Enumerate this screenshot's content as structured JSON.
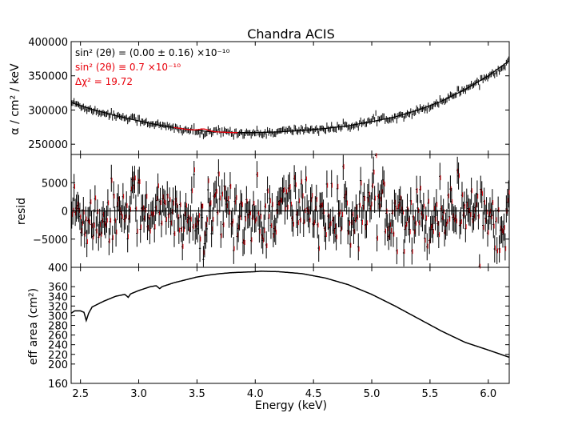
{
  "chart_data": [
    {
      "panel": "spectrum",
      "type": "scatter",
      "title": "Chandra ACIS",
      "ylabel": "α / cm² / keV",
      "xlim": [
        2.42,
        6.18
      ],
      "ylim": [
        235000,
        400000
      ],
      "yticks": [
        250000,
        300000,
        350000,
        400000
      ],
      "ytick_labels": [
        "250000",
        "300000",
        "350000",
        "400000"
      ],
      "annotations": [
        {
          "text": "sin² (2θ) = (0.00 ± 0.16) ×10⁻¹⁰",
          "color": "#000000"
        },
        {
          "text": "sin² (2θ) ≡ 0.7 ×10⁻¹⁰",
          "color": "#e8000b"
        },
        {
          "text": "Δχ²  = 19.72",
          "color": "#e8000b"
        }
      ],
      "series": [
        {
          "name": "data",
          "color": "#000000",
          "model_points": [
            [
              2.42,
              311000
            ],
            [
              2.6,
              301000
            ],
            [
              2.8,
              292000
            ],
            [
              3.0,
              284000
            ],
            [
              3.2,
              277000
            ],
            [
              3.4,
              272000
            ],
            [
              3.6,
              268500
            ],
            [
              3.8,
              267000
            ],
            [
              4.0,
              267000
            ],
            [
              4.2,
              268000
            ],
            [
              4.4,
              270000
            ],
            [
              4.6,
              273000
            ],
            [
              4.8,
              277000
            ],
            [
              5.0,
              283000
            ],
            [
              5.2,
              290000
            ],
            [
              5.4,
              300000
            ],
            [
              5.6,
              313000
            ],
            [
              5.8,
              330000
            ],
            [
              6.0,
              350000
            ],
            [
              6.18,
              372000
            ]
          ]
        },
        {
          "name": "sterile line model",
          "color": "#e8000b",
          "line_center": 3.56,
          "line_width": 0.04,
          "line_amplitude": 3000
        }
      ]
    },
    {
      "panel": "residuals",
      "type": "scatter",
      "ylabel": "resid",
      "xlim": [
        2.42,
        6.18
      ],
      "ylim": [
        -10000,
        10000
      ],
      "yticks": [
        -5000,
        0,
        5000
      ],
      "ytick_labels": [
        "−5000",
        "0",
        "5000"
      ],
      "bottom_tick_label": "400",
      "residual_rms": 3000,
      "dip": {
        "center": 3.56,
        "depth": -5500,
        "width": 0.05
      }
    },
    {
      "panel": "effective_area",
      "type": "line",
      "ylabel": "eff area (cm²)",
      "xlabel": "Energy (keV)",
      "xlim": [
        2.42,
        6.18
      ],
      "ylim": [
        160,
        400
      ],
      "xticks": [
        2.5,
        3.0,
        3.5,
        4.0,
        4.5,
        5.0,
        5.5,
        6.0
      ],
      "xtick_labels": [
        "2.5",
        "3.0",
        "3.5",
        "4.0",
        "4.5",
        "5.0",
        "5.5",
        "6.0"
      ],
      "yticks": [
        160,
        200,
        220,
        240,
        260,
        280,
        300,
        320,
        340,
        360
      ],
      "ytick_labels": [
        "160",
        "200",
        "220",
        "240",
        "260",
        "280",
        "300",
        "320",
        "340",
        "360"
      ],
      "x": [
        2.42,
        2.45,
        2.5,
        2.53,
        2.55,
        2.57,
        2.6,
        2.7,
        2.8,
        2.88,
        2.91,
        2.93,
        3.0,
        3.1,
        3.15,
        3.18,
        3.2,
        3.3,
        3.4,
        3.5,
        3.6,
        3.7,
        3.8,
        3.9,
        4.0,
        4.05,
        4.2,
        4.4,
        4.6,
        4.8,
        5.0,
        5.2,
        5.4,
        5.6,
        5.8,
        6.0,
        6.18
      ],
      "y": [
        305,
        310,
        310,
        307,
        290,
        305,
        318,
        330,
        340,
        344,
        338,
        345,
        352,
        360,
        362,
        356,
        360,
        368,
        374,
        380,
        384,
        387,
        389,
        390,
        391,
        392,
        391,
        387,
        378,
        364,
        344,
        320,
        294,
        268,
        245,
        229,
        214
      ]
    }
  ]
}
